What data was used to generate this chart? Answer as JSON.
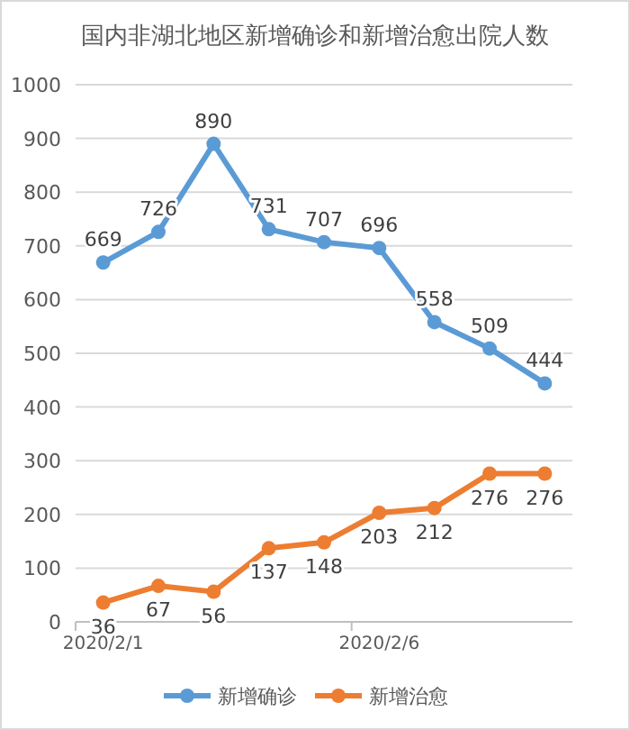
{
  "chart_data": {
    "type": "line",
    "title": "国内非湖北地区新增确诊和新增治愈出院人数",
    "categories": [
      "2020/2/1",
      null,
      null,
      null,
      null,
      "2020/2/6",
      null,
      null,
      null
    ],
    "series": [
      {
        "name": "新增确诊",
        "color": "#5b9bd5",
        "values": [
          669,
          726,
          890,
          731,
          707,
          696,
          558,
          509,
          444
        ]
      },
      {
        "name": "新增治愈",
        "color": "#ed7d31",
        "values": [
          36,
          67,
          56,
          137,
          148,
          203,
          212,
          276,
          276
        ]
      }
    ],
    "ylim": [
      0,
      1000
    ],
    "yticks": [
      0,
      100,
      200,
      300,
      400,
      500,
      600,
      700,
      800,
      900,
      1000
    ],
    "grid": "y",
    "legend": "bottom",
    "marker": "circle",
    "line_style": "solid",
    "data_labels": true
  }
}
